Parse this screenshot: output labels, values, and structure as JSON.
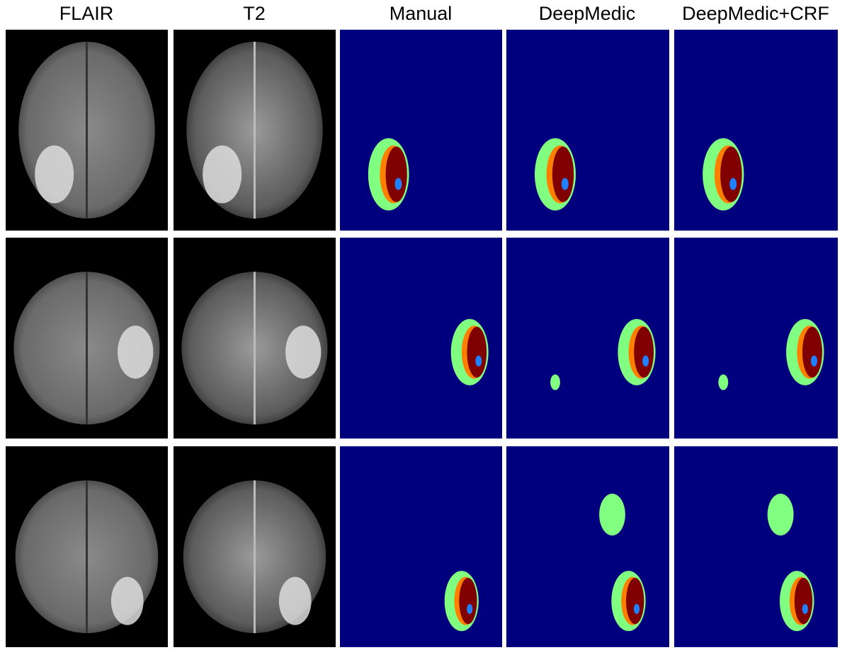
{
  "figure": {
    "columns": [
      "FLAIR",
      "T2",
      "Manual",
      "DeepMedic",
      "DeepMedic+CRF"
    ]
  }
}
